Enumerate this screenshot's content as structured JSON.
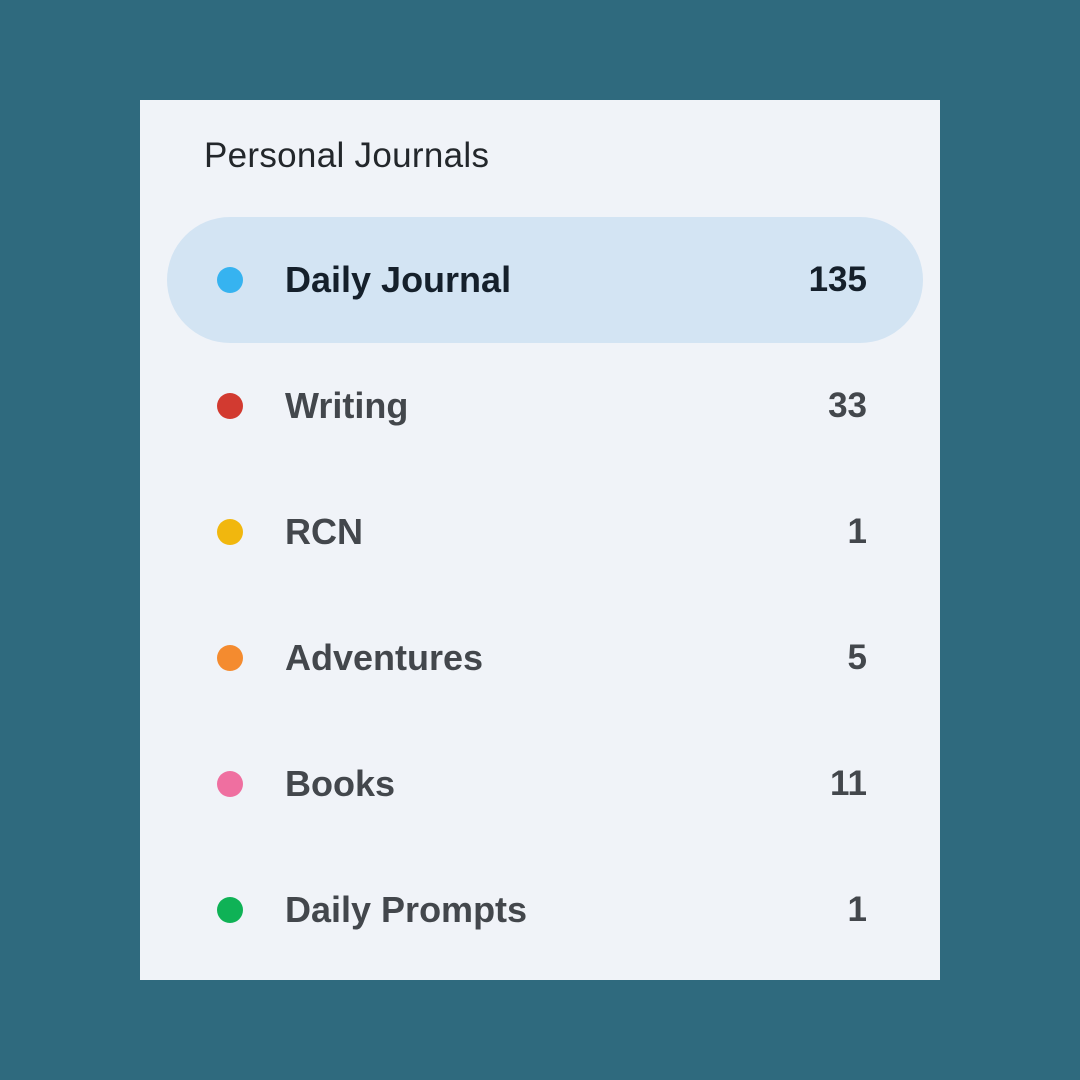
{
  "section": {
    "title": "Personal Journals"
  },
  "journals": [
    {
      "name": "Daily Journal",
      "count": "135",
      "color": "#36b3f0",
      "selected": true,
      "icon": "journal-color-dot-icon"
    },
    {
      "name": "Writing",
      "count": "33",
      "color": "#d23a30",
      "selected": false,
      "icon": "journal-color-dot-icon"
    },
    {
      "name": "RCN",
      "count": "1",
      "color": "#f1b70e",
      "selected": false,
      "icon": "journal-color-dot-icon"
    },
    {
      "name": "Adventures",
      "count": "5",
      "color": "#f48b2f",
      "selected": false,
      "icon": "journal-color-dot-icon"
    },
    {
      "name": "Books",
      "count": "11",
      "color": "#ef6fa0",
      "selected": false,
      "icon": "journal-color-dot-icon"
    },
    {
      "name": "Daily Prompts",
      "count": "1",
      "color": "#0fb256",
      "selected": false,
      "icon": "journal-color-dot-icon"
    }
  ],
  "colors": {
    "background": "#2f6a7e",
    "panel": "#f0f3f8",
    "selected_row": "#d3e4f3"
  }
}
